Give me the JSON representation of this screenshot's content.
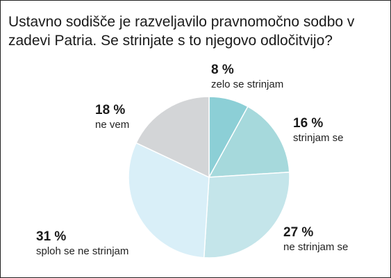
{
  "title": "Ustavno sodišče je razveljavilo pravnomočno sodbo v zadevi Patria. Se strinjate s to njegovo odločitvijo?",
  "chart_data": {
    "type": "pie",
    "title": "Ustavno sodišče je razveljavilo pravnomočno sodbo v zadevi Patria. Se strinjate s to njegovo odločitvijo?",
    "start_angle": "12 o'clock",
    "direction": "clockwise",
    "slices": [
      {
        "label": "zelo se strinjam",
        "value": 8,
        "value_label": "8 %",
        "color": "#8ccfd6"
      },
      {
        "label": "strinjam se",
        "value": 16,
        "value_label": "16 %",
        "color": "#a6d9dc"
      },
      {
        "label": "ne strinjam se",
        "value": 27,
        "value_label": "27 %",
        "color": "#c4e5ea"
      },
      {
        "label": "sploh se ne strinjam",
        "value": 31,
        "value_label": "31 %",
        "color": "#d9eff8"
      },
      {
        "label": "ne vem",
        "value": 18,
        "value_label": "18 %",
        "color": "#d3d5d7"
      }
    ]
  }
}
